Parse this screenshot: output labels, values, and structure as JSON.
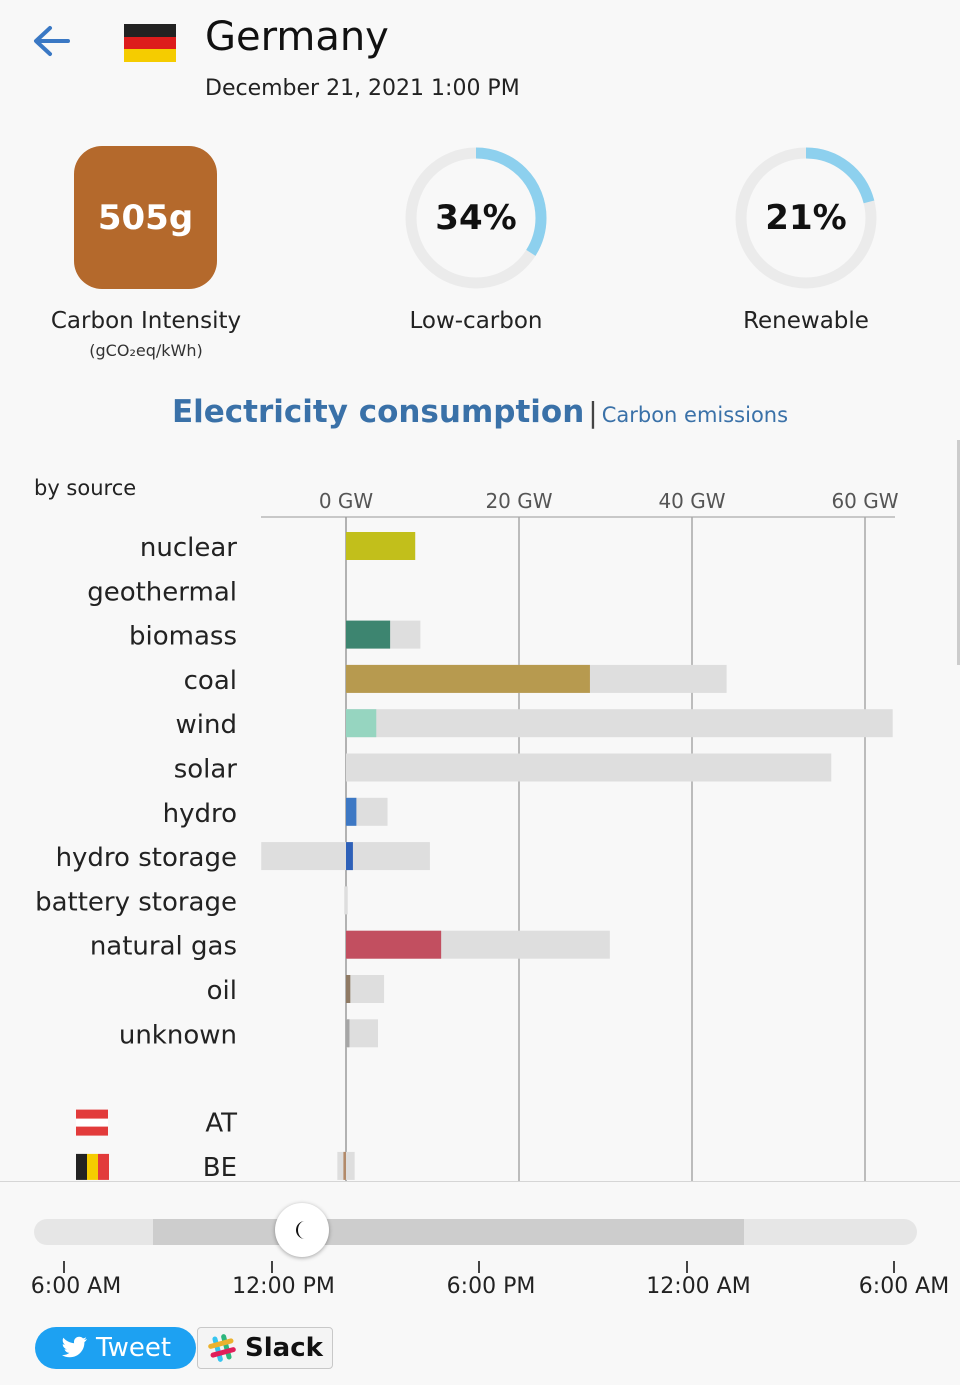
{
  "header": {
    "back_icon": "arrow-left-icon",
    "flag_icon": "germany-flag-icon",
    "country": "Germany",
    "datetime": "December 21, 2021 1:00 PM"
  },
  "metrics": {
    "carbon_intensity": {
      "value": "505g",
      "label": "Carbon Intensity",
      "unit": "(gCO₂eq/kWh)",
      "color": "#b4692c"
    },
    "low_carbon": {
      "value": "34%",
      "label": "Low-carbon",
      "fraction": 0.34
    },
    "renewable": {
      "value": "21%",
      "label": "Renewable",
      "fraction": 0.21
    },
    "ring_color": "#8dd0ee",
    "ring_track_color": "#ebebeb"
  },
  "tabs": {
    "active": "Electricity consumption",
    "separator": "|",
    "inactive": "Carbon emissions"
  },
  "chart_data": {
    "type": "bar",
    "title": "by source",
    "xlabel": "",
    "x_unit": "GW",
    "x_ticks": [
      "0 GW",
      "20 GW",
      "40 GW",
      "60 GW"
    ],
    "xlim": [
      -10,
      63
    ],
    "grid": true,
    "categories": [
      "nuclear",
      "geothermal",
      "biomass",
      "coal",
      "wind",
      "solar",
      "hydro",
      "hydro storage",
      "battery storage",
      "natural gas",
      "oil",
      "unknown"
    ],
    "series": [
      {
        "production": [
          8,
          0,
          5.1,
          28.2,
          3.5,
          0,
          1.2,
          0.8,
          0,
          11,
          0.5,
          0.4
        ],
        "capacity_min": [
          0,
          0,
          0,
          0,
          0,
          0,
          0,
          -9.8,
          -0.2,
          0,
          0,
          0
        ],
        "capacity_max": [
          8,
          0,
          8.6,
          44,
          63.2,
          56.1,
          4.8,
          9.7,
          0.2,
          30.5,
          4.4,
          3.7
        ],
        "colors": [
          "#c2bf1b",
          "#a3433e",
          "#3d8570",
          "#b79a4f",
          "#96d5c0",
          "#f5c542",
          "#3d78c4",
          "#2e60b8",
          "#888888",
          "#c24f60",
          "#8f7a64",
          "#a6a6a6"
        ]
      }
    ],
    "exchanges": [
      {
        "label": "AT",
        "flag": "austria-flag-icon",
        "value": 0,
        "capacity": [
          0,
          0
        ]
      },
      {
        "label": "BE",
        "flag": "belgium-flag-icon",
        "value": -0.3,
        "capacity": [
          -1,
          1
        ]
      }
    ]
  },
  "timeline": {
    "labels": [
      "6:00 AM",
      "12:00 PM",
      "6:00 PM",
      "12:00 AM",
      "6:00 AM"
    ],
    "range_start": 0.14,
    "range_end": 0.81,
    "position": 0.3,
    "thumb_icon": "moon-icon"
  },
  "share": {
    "tweet": "Tweet",
    "slack": "Slack",
    "tweet_icon": "twitter-bird-icon",
    "slack_icon": "slack-logo-icon"
  }
}
